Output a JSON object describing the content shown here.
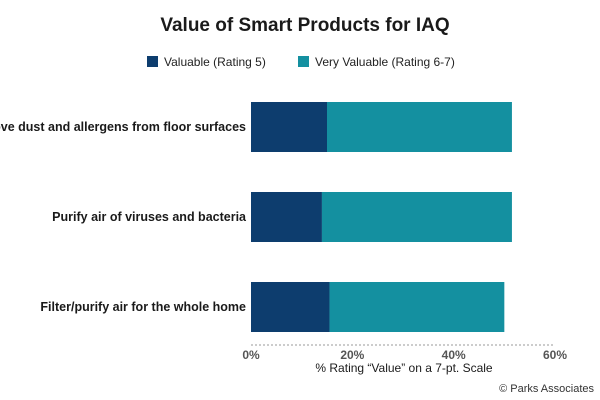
{
  "chart_data": {
    "type": "bar",
    "orientation": "horizontal",
    "stacked": true,
    "title": "Value of Smart Products for IAQ",
    "categories": [
      "Remove dust and allergens from floor surfaces",
      "Purify air of viruses and bacteria",
      "Filter/purify air for the whole home"
    ],
    "series": [
      {
        "name": "Valuable (Rating 5)",
        "color": "#0d3d6e",
        "values": [
          15,
          14,
          15.5
        ]
      },
      {
        "name": "Very Valuable (Rating 6-7)",
        "color": "#1490a0",
        "values": [
          36.5,
          37.5,
          34.5
        ]
      }
    ],
    "xlabel": "% Rating “Value” on a 7-pt. Scale",
    "ylabel": "",
    "xlim": [
      0,
      60
    ],
    "xticks": [
      0,
      20,
      40,
      60
    ],
    "xtick_labels": [
      "0%",
      "20%",
      "40%",
      "60%"
    ],
    "legend_position": "top",
    "grid": false
  },
  "credit": "© Parks Associates"
}
